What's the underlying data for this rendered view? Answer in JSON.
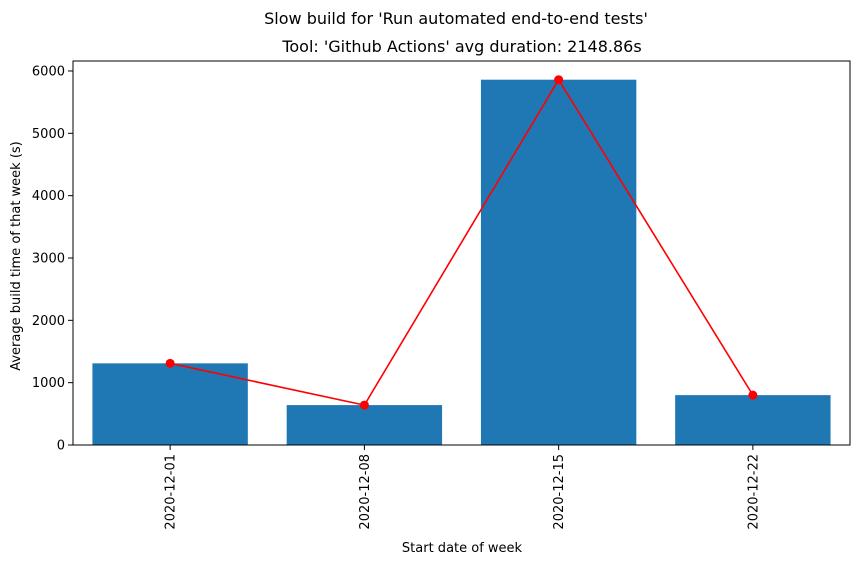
{
  "chart_data": {
    "type": "bar",
    "suptitle": "Slow build for 'Run automated end-to-end tests'",
    "title": "Tool: 'Github Actions' avg duration: 2148.86s",
    "xlabel": "Start date of week",
    "ylabel": "Average build time of that week (s)",
    "categories": [
      "2020-12-01",
      "2020-12-08",
      "2020-12-15",
      "2020-12-22"
    ],
    "series": [
      {
        "type": "bar",
        "values": [
          1310,
          640,
          5860,
          800
        ],
        "color": "#1f77b4"
      },
      {
        "type": "line",
        "marker": "circle",
        "values": [
          1310,
          640,
          5860,
          800
        ],
        "color": "#ff0000"
      }
    ],
    "ylim": [
      0,
      6160
    ],
    "yticks": [
      0,
      1000,
      2000,
      3000,
      4000,
      5000,
      6000
    ],
    "grid": false,
    "legend": "none"
  }
}
